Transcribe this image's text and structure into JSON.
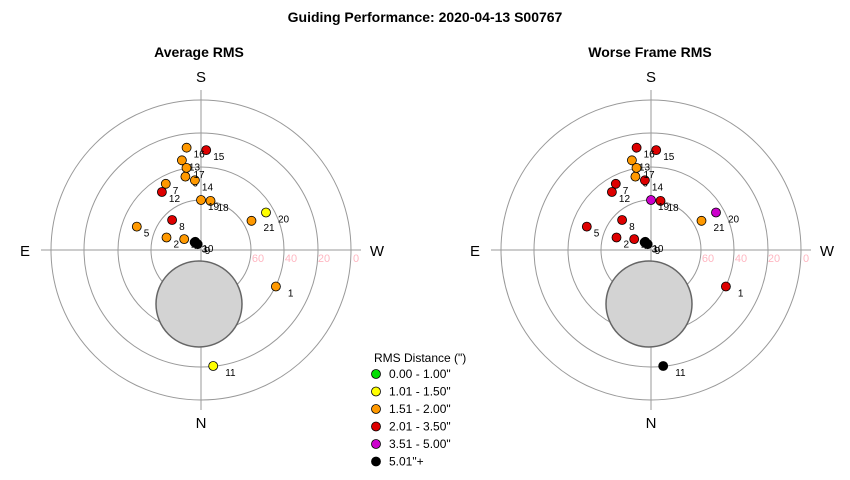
{
  "title": "Guiding Performance: 2020-04-13 S00767",
  "chart_data": [
    {
      "type": "scatter",
      "title": "Average RMS",
      "projection": "polar-altaz",
      "cardinals": {
        "top": "S",
        "bottom": "N",
        "left": "E",
        "right": "W"
      },
      "ring_labels": [
        "60",
        "40",
        "20",
        "0"
      ],
      "points": [
        {
          "label": "1",
          "az_deg": 116,
          "alt_deg": 40,
          "color": "#ff9900"
        },
        {
          "label": "2",
          "az_deg": 290,
          "alt_deg": 68,
          "color": "#ff9900"
        },
        {
          "label": "3",
          "az_deg": 320,
          "alt_deg": 84,
          "color": "#000000"
        },
        {
          "label": "4",
          "az_deg": 303,
          "alt_deg": 78,
          "color": "#ff9900"
        },
        {
          "label": "5",
          "az_deg": 290,
          "alt_deg": 49,
          "color": "#ff9900"
        },
        {
          "label": "6",
          "az_deg": 348,
          "alt_deg": 45,
          "color": "#ff9900"
        },
        {
          "label": "7",
          "az_deg": 332,
          "alt_deg": 45,
          "color": "#ff9900"
        },
        {
          "label": "8",
          "az_deg": 316,
          "alt_deg": 65,
          "color": "#dd0000"
        },
        {
          "label": "9",
          "az_deg": 330,
          "alt_deg": 86,
          "color": "#000000"
        },
        {
          "label": "10",
          "az_deg": 325,
          "alt_deg": 84,
          "color": "#000000"
        },
        {
          "label": "11",
          "az_deg": 174,
          "alt_deg": 20,
          "color": "#ffff00"
        },
        {
          "label": "12",
          "az_deg": 326,
          "alt_deg": 48,
          "color": "#dd0000"
        },
        {
          "label": "13",
          "az_deg": 348,
          "alt_deg": 35,
          "color": "#ff9900"
        },
        {
          "label": "14",
          "az_deg": 355,
          "alt_deg": 48,
          "color": "#ff9900"
        },
        {
          "label": "15",
          "az_deg": 3,
          "alt_deg": 30,
          "color": "#dd0000"
        },
        {
          "label": "16",
          "az_deg": 352,
          "alt_deg": 28,
          "color": "#ff9900"
        },
        {
          "label": "17",
          "az_deg": 350,
          "alt_deg": 40,
          "color": "#ff9900"
        },
        {
          "label": "18",
          "az_deg": 11,
          "alt_deg": 60,
          "color": "#ff9900"
        },
        {
          "label": "19",
          "az_deg": 0,
          "alt_deg": 60,
          "color": "#ff9900"
        },
        {
          "label": "20",
          "az_deg": 60,
          "alt_deg": 45,
          "color": "#ffff00"
        },
        {
          "label": "21",
          "az_deg": 60,
          "alt_deg": 55,
          "color": "#ff9900"
        }
      ]
    },
    {
      "type": "scatter",
      "title": "Worse Frame RMS",
      "projection": "polar-altaz",
      "cardinals": {
        "top": "S",
        "bottom": "N",
        "left": "E",
        "right": "W"
      },
      "ring_labels": [
        "60",
        "40",
        "20",
        "0"
      ],
      "points": [
        {
          "label": "1",
          "az_deg": 116,
          "alt_deg": 40,
          "color": "#dd0000"
        },
        {
          "label": "2",
          "az_deg": 290,
          "alt_deg": 68,
          "color": "#dd0000"
        },
        {
          "label": "3",
          "az_deg": 320,
          "alt_deg": 84,
          "color": "#000000"
        },
        {
          "label": "4",
          "az_deg": 303,
          "alt_deg": 78,
          "color": "#dd0000"
        },
        {
          "label": "5",
          "az_deg": 290,
          "alt_deg": 49,
          "color": "#dd0000"
        },
        {
          "label": "6",
          "az_deg": 348,
          "alt_deg": 45,
          "color": "#ff9900"
        },
        {
          "label": "7",
          "az_deg": 332,
          "alt_deg": 45,
          "color": "#dd0000"
        },
        {
          "label": "8",
          "az_deg": 316,
          "alt_deg": 65,
          "color": "#dd0000"
        },
        {
          "label": "9",
          "az_deg": 330,
          "alt_deg": 86,
          "color": "#000000"
        },
        {
          "label": "10",
          "az_deg": 325,
          "alt_deg": 84,
          "color": "#000000"
        },
        {
          "label": "11",
          "az_deg": 174,
          "alt_deg": 20,
          "color": "#000000"
        },
        {
          "label": "12",
          "az_deg": 326,
          "alt_deg": 48,
          "color": "#dd0000"
        },
        {
          "label": "13",
          "az_deg": 348,
          "alt_deg": 35,
          "color": "#ff9900"
        },
        {
          "label": "14",
          "az_deg": 355,
          "alt_deg": 48,
          "color": "#dd0000"
        },
        {
          "label": "15",
          "az_deg": 3,
          "alt_deg": 30,
          "color": "#dd0000"
        },
        {
          "label": "16",
          "az_deg": 352,
          "alt_deg": 28,
          "color": "#dd0000"
        },
        {
          "label": "17",
          "az_deg": 350,
          "alt_deg": 40,
          "color": "#ff9900"
        },
        {
          "label": "18",
          "az_deg": 11,
          "alt_deg": 60,
          "color": "#dd0000"
        },
        {
          "label": "19",
          "az_deg": 0,
          "alt_deg": 60,
          "color": "#cc00cc"
        },
        {
          "label": "20",
          "az_deg": 60,
          "alt_deg": 45,
          "color": "#cc00cc"
        },
        {
          "label": "21",
          "az_deg": 60,
          "alt_deg": 55,
          "color": "#ff9900"
        }
      ]
    }
  ],
  "legend": {
    "title": "RMS Distance (\")",
    "items": [
      {
        "label": "0.00 - 1.00\"",
        "color": "#00dd00"
      },
      {
        "label": "1.01 - 1.50\"",
        "color": "#ffff00"
      },
      {
        "label": "1.51 - 2.00\"",
        "color": "#ff9900"
      },
      {
        "label": "2.01 - 3.50\"",
        "color": "#dd0000"
      },
      {
        "label": "3.51 - 5.00\"",
        "color": "#cc00cc"
      },
      {
        "label": "5.01\"+",
        "color": "#000000"
      }
    ]
  }
}
